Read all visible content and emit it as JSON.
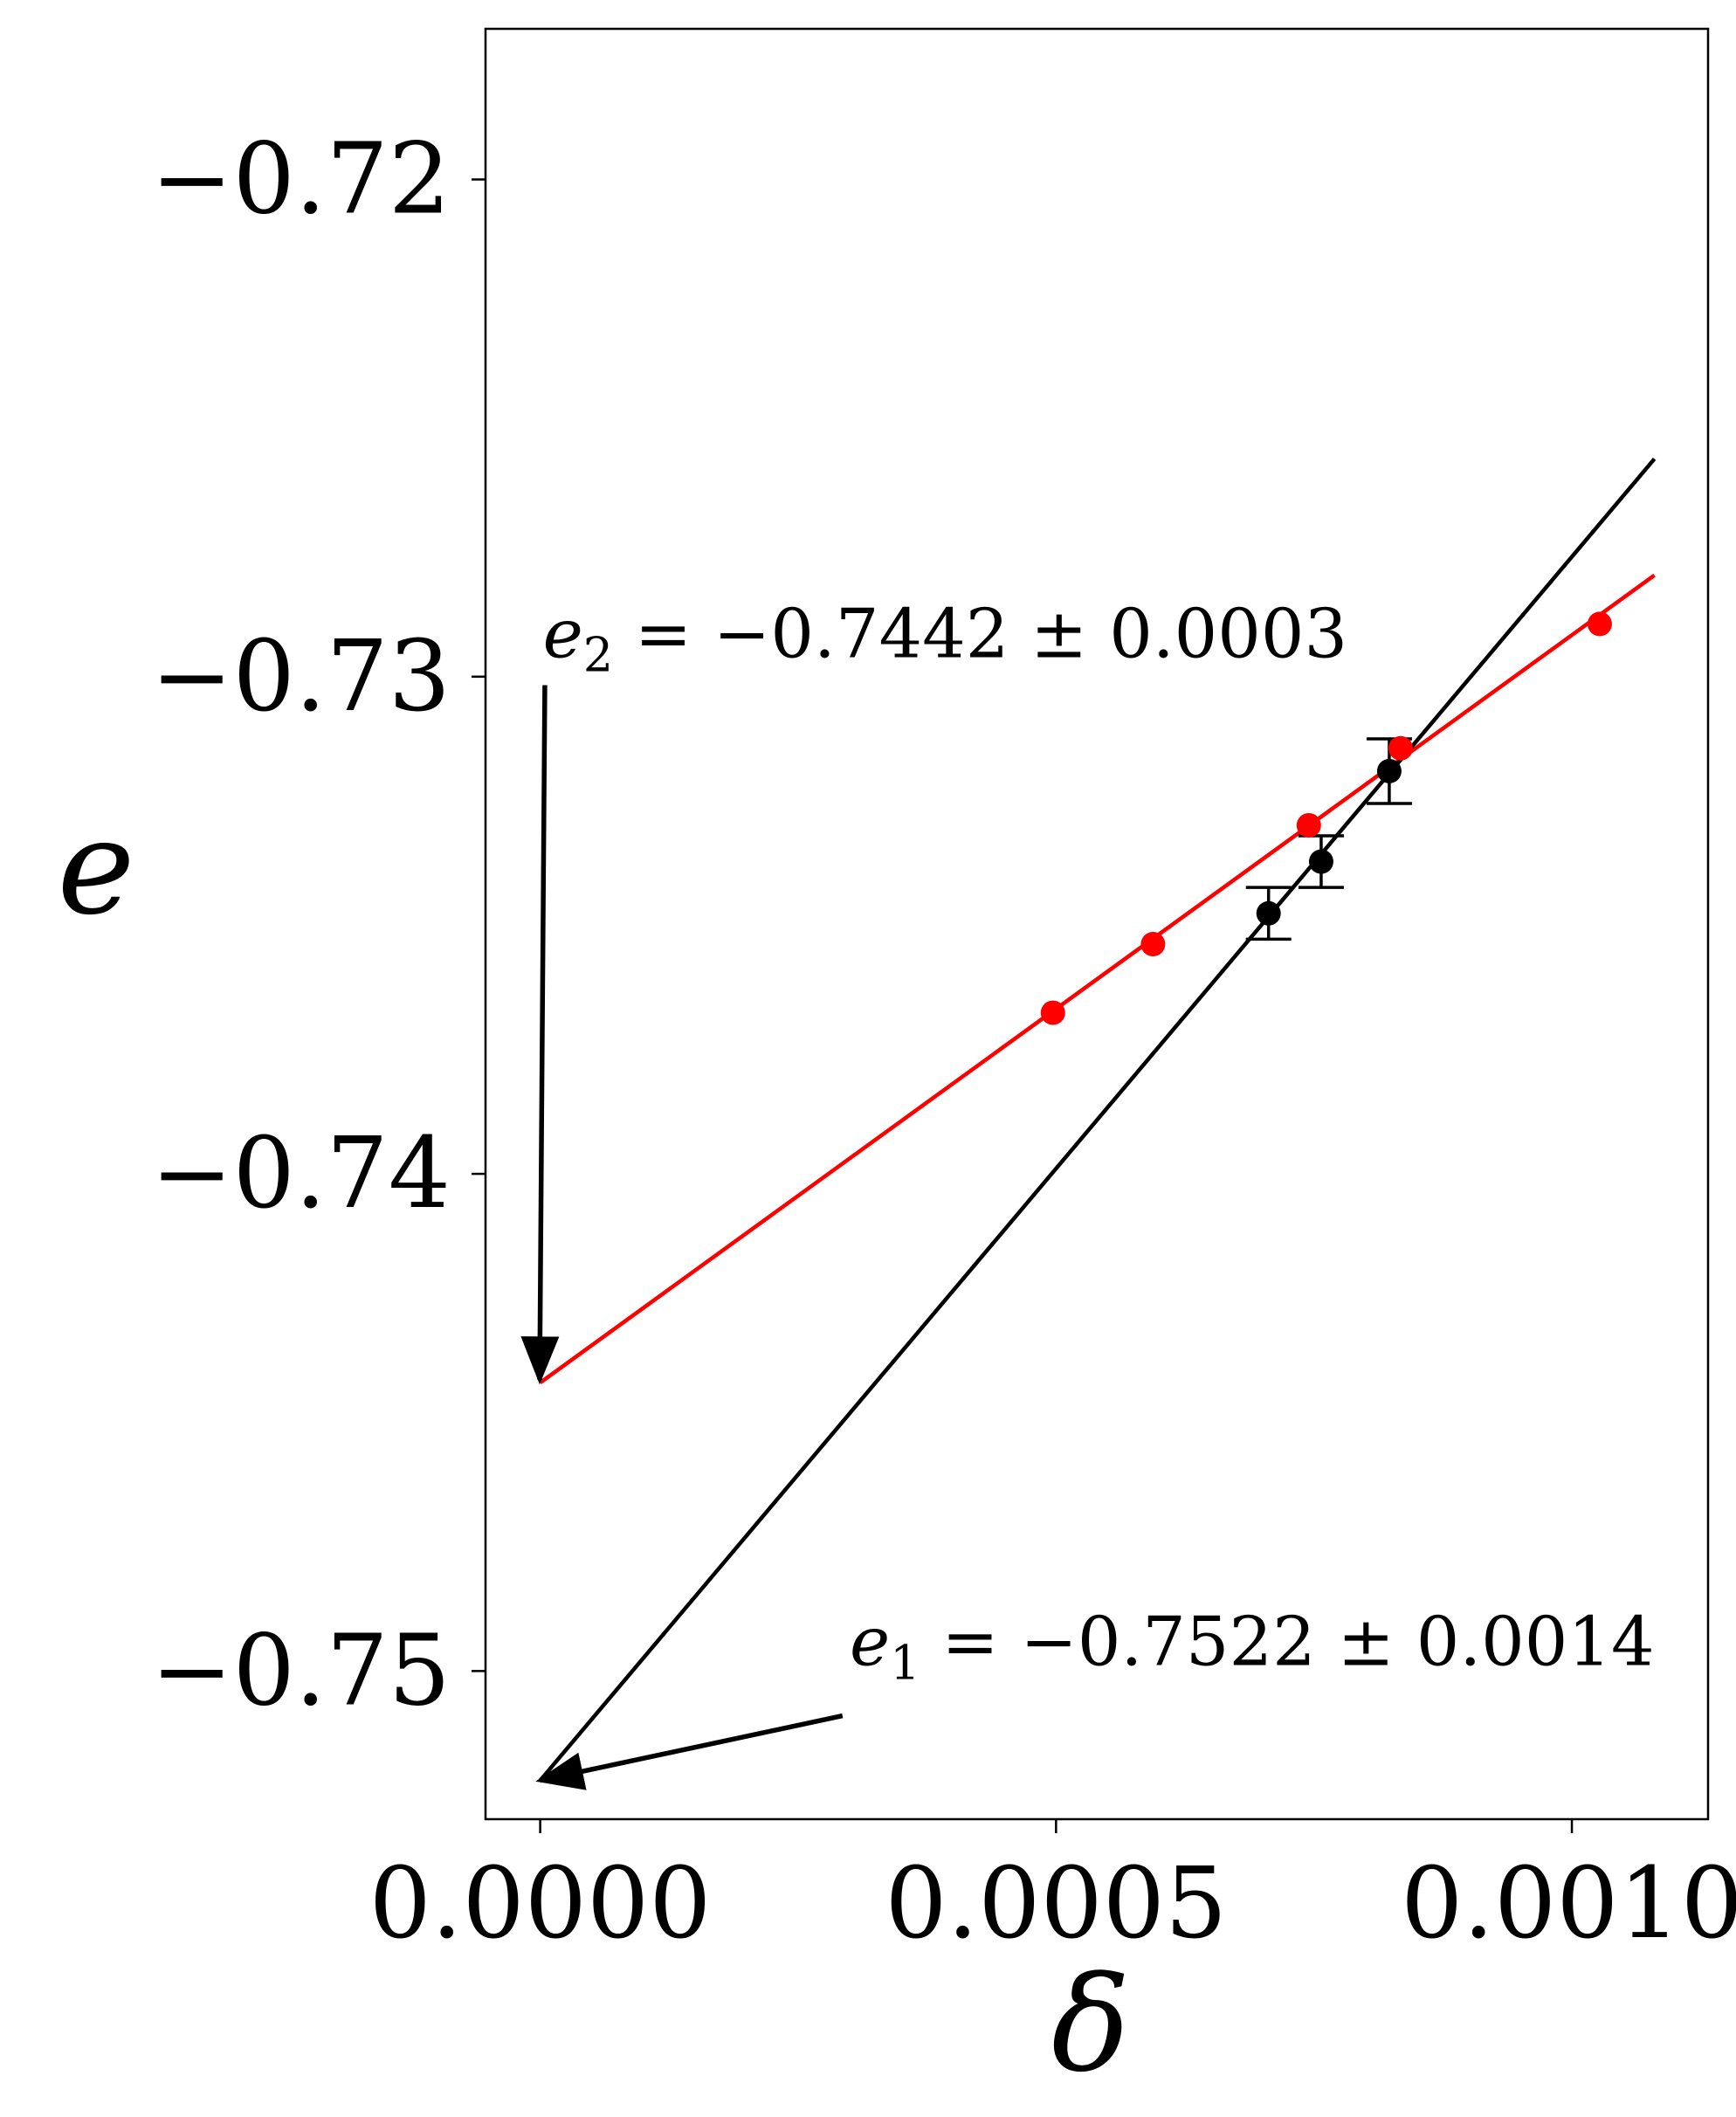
{
  "chart_data": {
    "type": "scatter",
    "xlabel": "δ",
    "ylabel": "e",
    "xlim": [
      -5.3e-05,
      0.001132
    ],
    "ylim": [
      -0.75298,
      -0.71697
    ],
    "xticks": [
      0.0,
      0.0005,
      0.001
    ],
    "xtick_labels": [
      "0.0000",
      "0.0005",
      "0.0010"
    ],
    "yticks": [
      -0.72,
      -0.73,
      -0.74,
      -0.75
    ],
    "ytick_labels": [
      "−0.72",
      "−0.73",
      "−0.74",
      "−0.75"
    ],
    "grid": false,
    "series": [
      {
        "color": "#ff0000",
        "points": [
          {
            "x": 0.000497,
            "y": -0.73676
          },
          {
            "x": 0.000594,
            "y": -0.73538
          },
          {
            "x": 0.000745,
            "y": -0.73299
          },
          {
            "x": 0.000834,
            "y": -0.73144
          },
          {
            "x": 0.001027,
            "y": -0.72894
          }
        ],
        "fit": {
          "x0": 0.0,
          "y0": -0.7442,
          "x1": 0.00108,
          "y1": -0.72796
        }
      },
      {
        "color": "#000000",
        "points": [
          {
            "x": 0.000706,
            "y": -0.73476,
            "yerr": 0.00052
          },
          {
            "x": 0.000757,
            "y": -0.73372,
            "yerr": 0.00052
          },
          {
            "x": 0.000823,
            "y": -0.7319,
            "yerr": 0.00065
          }
        ],
        "fit": {
          "x0": 0.0,
          "y0": -0.7522,
          "x1": 0.00108,
          "y1": -0.72562
        }
      }
    ],
    "annotations": [
      {
        "id": "e2",
        "var": "e",
        "sub": "2",
        "text": " = −0.7442 ± 0.0003",
        "text_pos": {
          "x": 2.5e-06,
          "y": -0.72961
        },
        "arrow_from": {
          "x": 4.5e-06,
          "y": -0.73017
        },
        "arrow_to": {
          "x": -5e-07,
          "y": -0.74414
        }
      },
      {
        "id": "e1",
        "var": "e",
        "sub": "1",
        "text": " = −0.7522 ± 0.0014",
        "text_pos": {
          "x": 0.0003,
          "y": -0.74988
        },
        "arrow_from": {
          "x": 0.000293,
          "y": -0.7509
        },
        "arrow_to": {
          "x": 0.0,
          "y": -0.7522
        }
      }
    ]
  }
}
